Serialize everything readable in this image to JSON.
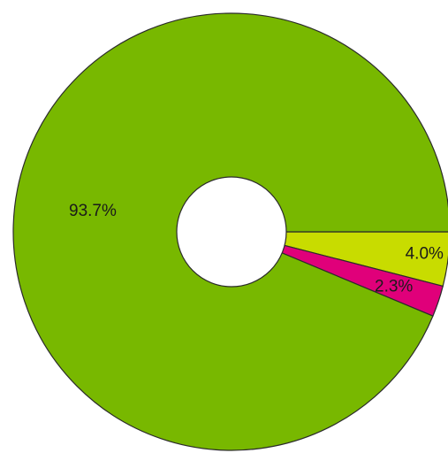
{
  "chart_data": {
    "type": "pie",
    "title": "",
    "donut": true,
    "slices": [
      {
        "label": "4.0%",
        "value": 4.0,
        "color": "#c8dc00"
      },
      {
        "label": "2.3%",
        "value": 2.3,
        "color": "#e0007a"
      },
      {
        "label": "93.7%",
        "value": 93.7,
        "color": "#78b800"
      }
    ],
    "start_angle_deg": 0,
    "direction": "clockwise",
    "legend": "none"
  }
}
